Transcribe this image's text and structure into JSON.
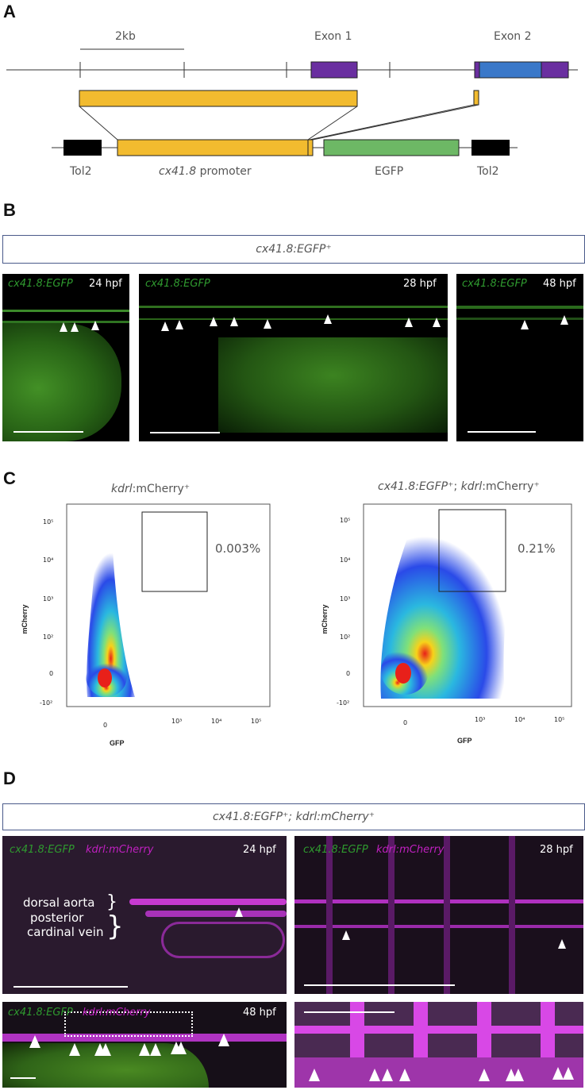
{
  "panels": {
    "a": "A",
    "b": "B",
    "c": "C",
    "d": "D"
  },
  "panelA": {
    "scale_label": "2kb",
    "exon1": "Exon 1",
    "exon2": "Exon 2",
    "tol2_left": "Tol2",
    "promoter": "cx41.8",
    "promoter_suffix": " promoter",
    "egfp": "EGFP",
    "tol2_right": "Tol2",
    "colors": {
      "exon_purple": "#6a2fa0",
      "exon_blue": "#3a78c9",
      "promoter": "#f2bb2f",
      "egfp": "#6db865",
      "tol2": "#000000"
    }
  },
  "panelB": {
    "header": "cx41.8:EGFP⁺",
    "img1_label": "cx41.8:EGFP",
    "img1_time": "24 hpf",
    "img2_label": "cx41.8:EGFP",
    "img2_time": "28 hpf",
    "img3_label": "cx41.8:EGFP",
    "img3_time": "48 hpf"
  },
  "panelC": {
    "plot1_title": "kdrl:mCherry⁺",
    "plot1_title_italic": "kdrl",
    "plot1_title_rest": ":mCherry⁺",
    "plot1_percent": "0.003%",
    "plot2_title_italic": "cx41.8:EGFP⁺",
    "plot2_title_mid": "; ",
    "plot2_title_italic2": "kdrl",
    "plot2_title_rest": ":mCherry⁺",
    "plot2_percent": "0.21%",
    "ylabel": "mCherry",
    "xlabel": "GFP",
    "yticks": [
      "10⁵",
      "10⁴",
      "10³",
      "10²",
      "0",
      "-10²"
    ],
    "xticks": [
      "0",
      "10³",
      "10⁴",
      "10⁵"
    ]
  },
  "chart_data": [
    {
      "type": "scatter",
      "title": "kdrl:mCherry⁺",
      "xlabel": "GFP",
      "ylabel": "mCherry",
      "annotations": [
        "0.003%"
      ]
    },
    {
      "type": "scatter",
      "title": "cx41.8:EGFP⁺; kdrl:mCherry⁺",
      "xlabel": "GFP",
      "ylabel": "mCherry",
      "annotations": [
        "0.21%"
      ]
    }
  ],
  "panelD": {
    "header": "cx41.8:EGFP⁺; kdrl:mCherry⁺",
    "img1_label_g": "cx41.8:EGFP",
    "img1_label_m": "kdrl:mCherry",
    "img1_time": "24 hpf",
    "dorsal_aorta": "dorsal aorta",
    "pcv_line1": "posterior",
    "pcv_line2": "cardinal vein",
    "img2_label_g": "cx41.8:EGFP",
    "img2_label_m": "kdrl:mCherry",
    "img2_time": "28 hpf",
    "img3_label_g": "cx41.8:EGFP",
    "img3_label_m": "kdrl:mCherry",
    "img3_time": "48 hpf"
  }
}
